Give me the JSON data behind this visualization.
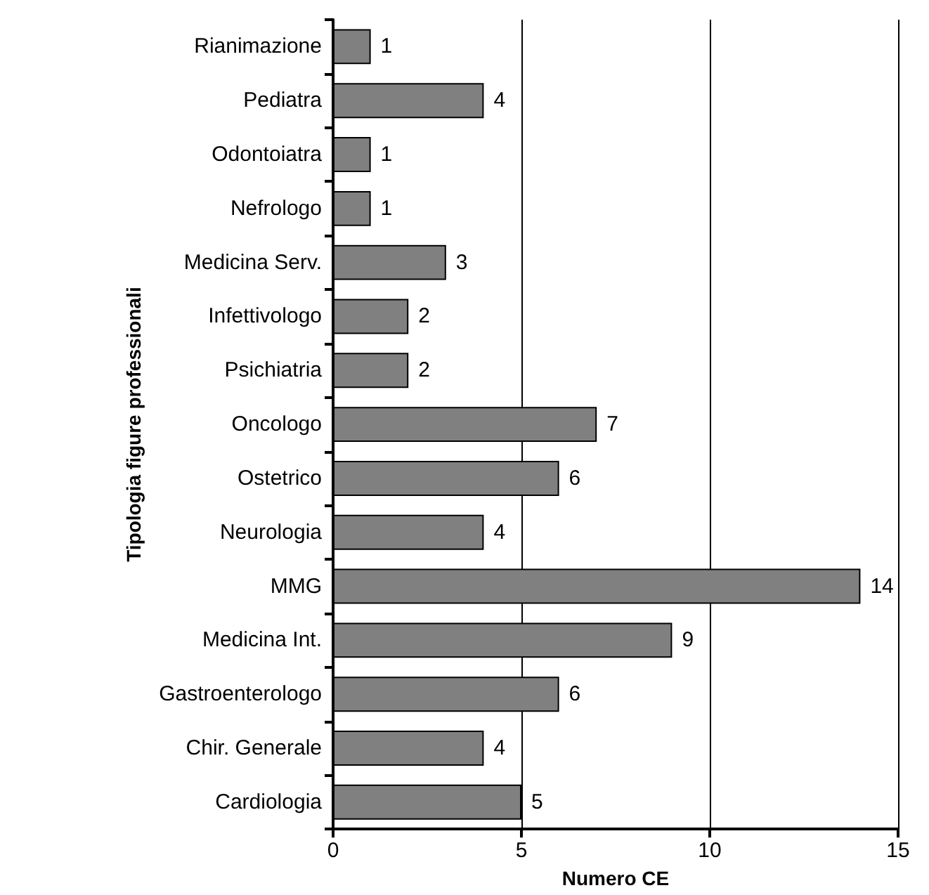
{
  "chart_data": {
    "type": "bar",
    "orientation": "horizontal",
    "xlabel": "Numero CE",
    "ylabel": "Tipologia figure professionali",
    "categories": [
      "Rianimazione",
      "Pediatra",
      "Odontoiatra",
      "Nefrologo",
      "Medicina Serv.",
      "Infettivologo",
      "Psichiatria",
      "Oncologo",
      "Ostetrico",
      "Neurologia",
      "MMG",
      "Medicina Int.",
      "Gastroenterologo",
      "Chir. Generale",
      "Cardiologia"
    ],
    "values": [
      1,
      4,
      1,
      1,
      3,
      2,
      2,
      7,
      6,
      4,
      14,
      9,
      6,
      4,
      5
    ],
    "color": "#808080",
    "xlim": [
      0,
      15
    ],
    "xticks": [
      0,
      5,
      10,
      15
    ],
    "grid": "x",
    "data_labels": true
  }
}
